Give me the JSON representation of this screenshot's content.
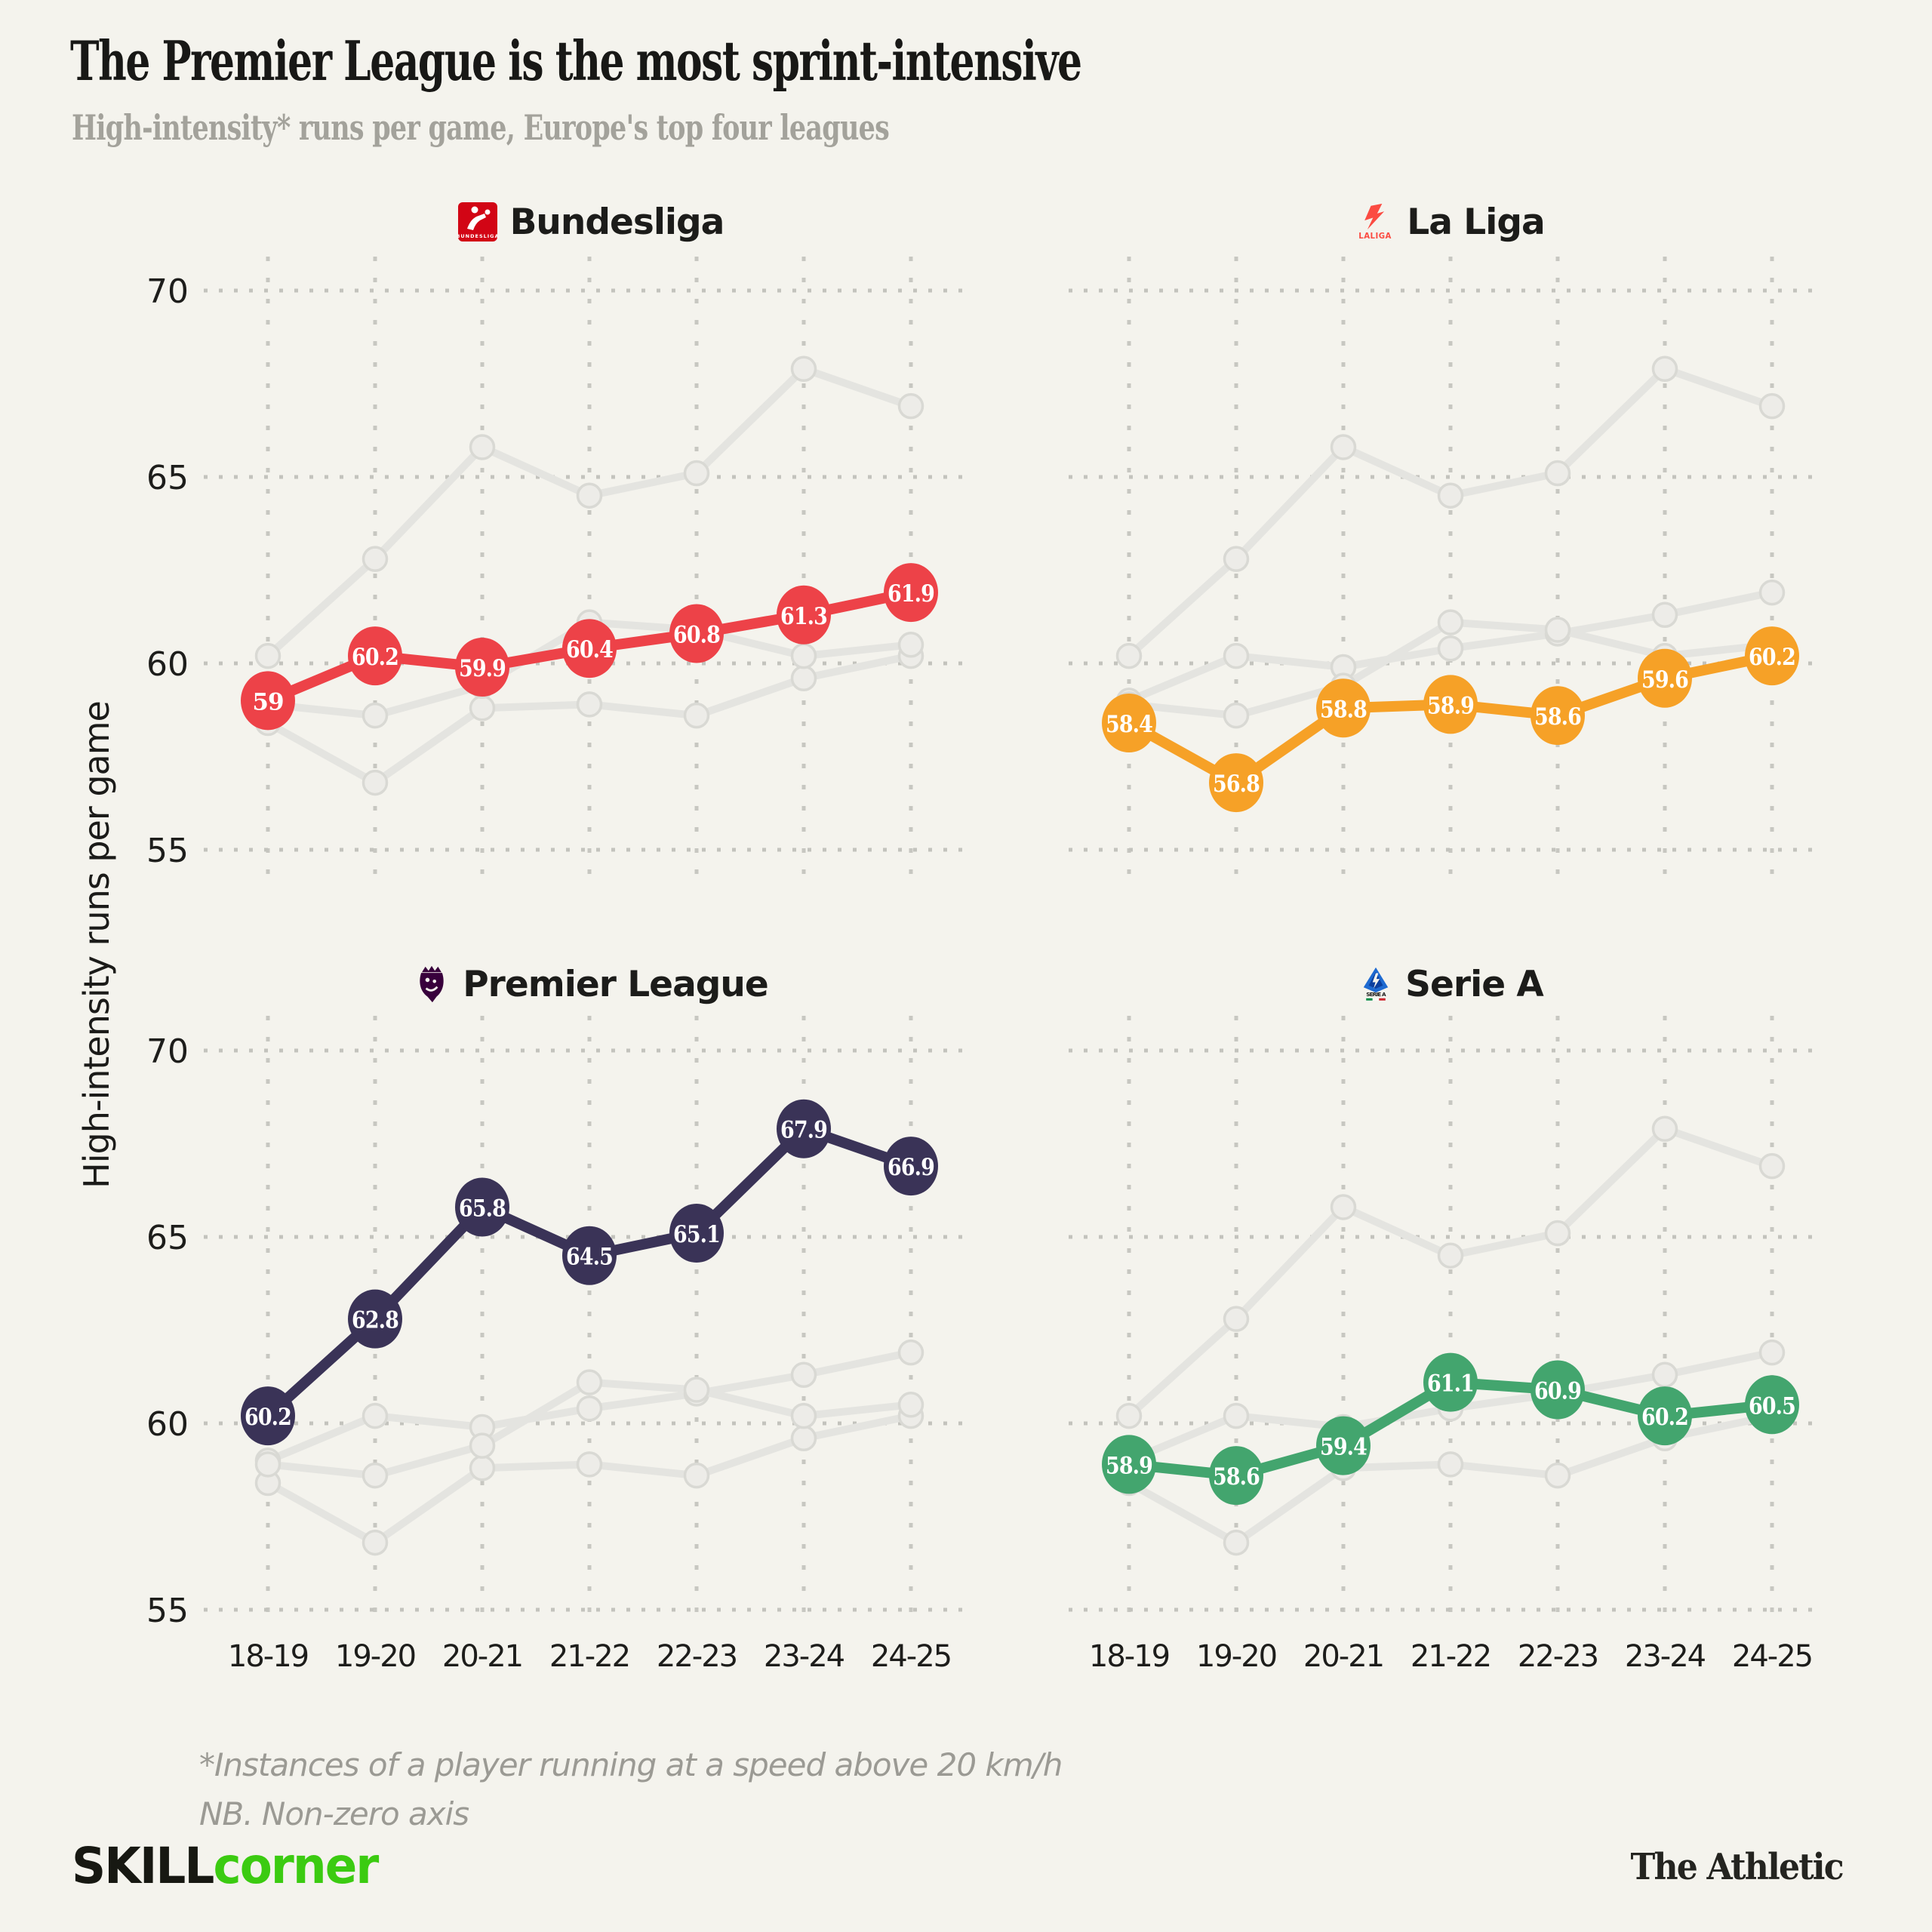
{
  "header": {
    "title": "The Premier League is the most sprint-intensive",
    "subtitle": "High-intensity* runs per game, Europe's top four leagues"
  },
  "chart_data": {
    "type": "line",
    "categories": [
      "18-19",
      "19-20",
      "20-21",
      "21-22",
      "22-23",
      "23-24",
      "24-25"
    ],
    "yticks": [
      55,
      60,
      65,
      70
    ],
    "ylim": [
      54,
      71
    ],
    "grid": "dotted",
    "legend": "none",
    "ylabel": "High-intensity runs per game",
    "series": [
      {
        "name": "Bundesliga",
        "color": "#ed4248",
        "values": [
          59,
          60.2,
          59.9,
          60.4,
          60.8,
          61.3,
          61.9
        ]
      },
      {
        "name": "La Liga",
        "color": "#f6a127",
        "values": [
          58.4,
          56.8,
          58.8,
          58.9,
          58.6,
          59.6,
          60.2
        ]
      },
      {
        "name": "Premier League",
        "color": "#3a3357",
        "values": [
          60.2,
          62.8,
          65.8,
          64.5,
          65.1,
          67.9,
          66.9
        ]
      },
      {
        "name": "Serie A",
        "color": "#43a56e",
        "values": [
          58.9,
          58.6,
          59.4,
          61.1,
          60.9,
          60.2,
          60.5
        ]
      }
    ],
    "panels": [
      {
        "league": "Bundesliga",
        "icon": "bundesliga-logo",
        "icon_text": "BUNDESLIGA"
      },
      {
        "league": "La Liga",
        "icon": "laliga-logo",
        "icon_text": "LALIGA"
      },
      {
        "league": "Premier League",
        "icon": "premier-league-logo",
        "icon_text": ""
      },
      {
        "league": "Serie A",
        "icon": "serie-a-logo",
        "icon_text": "SERIE A"
      }
    ],
    "context_series_color": "#e4e4e0"
  },
  "footnotes": {
    "line1": "*Instances of a player running at a speed above 20 km/h",
    "line2": "NB. Non-zero axis"
  },
  "footer": {
    "brand_left_black": "SKILL",
    "brand_left_green": "corner",
    "brand_right": "The Athletic"
  },
  "colors": {
    "background": "#f4f3ed",
    "grid_dots": "#c6c6c0",
    "bundesliga_red": "#ed4248",
    "laliga_orange": "#f6a127",
    "premier_league_navy": "#3a3357",
    "serie_a_green": "#43a56e",
    "bundesliga_logo_red": "#d20515",
    "laliga_logo_coral": "#fb4b42",
    "premier_league_logo_purple": "#38003c",
    "serie_a_logo_blue": "#1e6ad1",
    "skillcorner_green": "#3bcb11"
  }
}
